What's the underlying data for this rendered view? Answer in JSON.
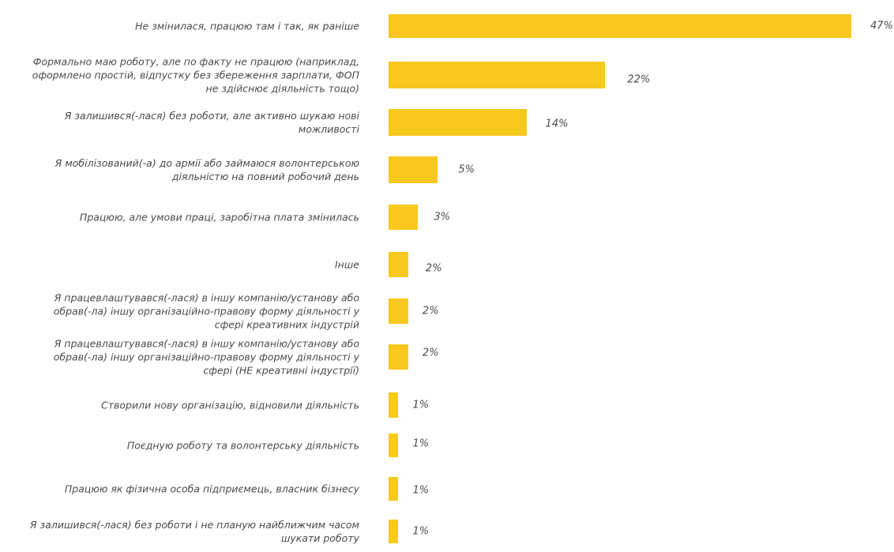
{
  "chart_data": {
    "type": "bar",
    "orientation": "horizontal",
    "title": "",
    "xlabel": "",
    "ylabel": "",
    "grid": false,
    "legend": "none",
    "bar_color": "#f7c81e",
    "xlim": [
      0,
      47
    ],
    "categories": [
      "Не змінилася, працюю там і так, як раніше",
      "Формально маю роботу, але по факту не працюю (наприклад, оформлено простій, відпустку без збереження зарплати, ФОП не здійснює діяльність тощо)",
      "Я залишився(-лася) без роботи, але активно шукаю нові можливості",
      "Я мобілізований(-а) до армії або займаюся волонтерською діяльністю на повний робочий день",
      "Працюю, але умови праці, заробітна плата змінилась",
      "Інше",
      "Я працевлаштувався(-лася) в іншу компанію/установу або обрав(-ла) іншу організаційно-правову форму діяльності у сфері креативних індустрій",
      "Я працевлаштувався(-лася) в іншу компанію/установу або обрав(-ла) іншу організаційно-правову форму діяльності у сфері (НЕ креативні індустрії)",
      "Створили нову організацію, відновили діяльність",
      "Поєдную роботу та волонтерську діяльність",
      "Працюю як фізична особа підприємець, власник бізнесу",
      "Я залишився(-лася) без роботи і не планую найближчим часом шукати роботу"
    ],
    "values": [
      47,
      22,
      14,
      5,
      3,
      2,
      2,
      2,
      1,
      1,
      1,
      1
    ],
    "value_labels": [
      "47%",
      "22%",
      "14%",
      "5%",
      "3%",
      "2%",
      "2%",
      "2%",
      "1%",
      "1%",
      "1%",
      "1%"
    ]
  }
}
